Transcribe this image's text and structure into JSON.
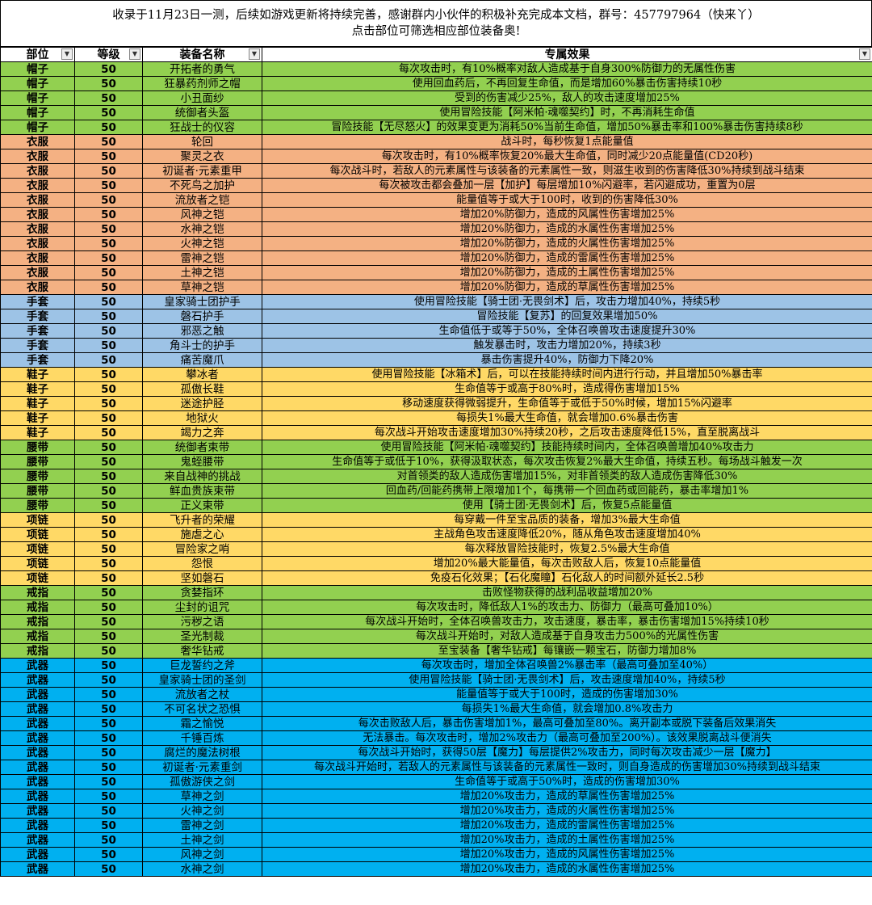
{
  "header": {
    "line1": "收录于11月23日一测，后续如游戏更新将持续完善，感谢群内小伙伴的积极补充完成本文档，群号：457797964（快来丫）",
    "line2": "点击部位可筛选相应部位装备奥!"
  },
  "columns": [
    "部位",
    "等级",
    "装备名称",
    "专属效果"
  ],
  "colors": {
    "帽子": "#92d050",
    "衣服": "#f4b183",
    "手套": "#9dc3e6",
    "鞋子": "#ffd966",
    "腰带": "#92d050",
    "项链": "#ffd966",
    "戒指": "#92d050",
    "武器": "#00b0f0"
  },
  "rows": [
    [
      "帽子",
      "50",
      "开拓者的勇气",
      "每次攻击时，有10%概率对敌人造成基于自身300%防御力的无属性伤害"
    ],
    [
      "帽子",
      "50",
      "狂暴药剂师之帽",
      "使用回血药后，不再回复生命值，而是增加60%暴击伤害持续10秒"
    ],
    [
      "帽子",
      "50",
      "小丑面纱",
      "受到的伤害减少25%，敌人的攻击速度增加25%"
    ],
    [
      "帽子",
      "50",
      "统御者头盔",
      "使用冒险技能【阿米帕·魂噬契约】时，不再消耗生命值"
    ],
    [
      "帽子",
      "50",
      "狂战士的仪容",
      "冒险技能【无尽怒火】的效果变更为消耗50%当前生命值，增加50%暴击率和100%暴击伤害持续8秒"
    ],
    [
      "衣服",
      "50",
      "轮回",
      "战斗时，每秒恢复1点能量值"
    ],
    [
      "衣服",
      "50",
      "聚灵之衣",
      "每次攻击时，有10%概率恢复20%最大生命值，同时减少20点能量值(CD20秒)"
    ],
    [
      "衣服",
      "50",
      "初诞者·元素重甲",
      "每次战斗时，若敌人的元素属性与该装备的元素属性一致，则滋生收到的伤害降低30%持续到战斗结束"
    ],
    [
      "衣服",
      "50",
      "不死鸟之加护",
      "每次被攻击都会叠加一层【加护】每层增加10%闪避率，若闪避成功，重置为0层"
    ],
    [
      "衣服",
      "50",
      "流放者之铠",
      "能量值等于或大于100时，收到的伤害降低30%"
    ],
    [
      "衣服",
      "50",
      "风神之铠",
      "增加20%防御力，造成的风属性伤害增加25%"
    ],
    [
      "衣服",
      "50",
      "水神之铠",
      "增加20%防御力，造成的水属性伤害增加25%"
    ],
    [
      "衣服",
      "50",
      "火神之铠",
      "增加20%防御力，造成的火属性伤害增加25%"
    ],
    [
      "衣服",
      "50",
      "雷神之铠",
      "增加20%防御力，造成的雷属性伤害增加25%"
    ],
    [
      "衣服",
      "50",
      "土神之铠",
      "增加20%防御力，造成的土属性伤害增加25%"
    ],
    [
      "衣服",
      "50",
      "草神之铠",
      "增加20%防御力，造成的草属性伤害增加25%"
    ],
    [
      "手套",
      "50",
      "皇家骑士团护手",
      "使用冒险技能【骑士团·无畏剑术】后，攻击力增加40%，持续5秒"
    ],
    [
      "手套",
      "50",
      "磐石护手",
      "冒险技能【复苏】的回复效果增加50%"
    ],
    [
      "手套",
      "50",
      "邪恶之触",
      "生命值低于或等于50%，全体召唤兽攻击速度提升30%"
    ],
    [
      "手套",
      "50",
      "角斗士的护手",
      "触发暴击时，攻击力增加20%，持续3秒"
    ],
    [
      "手套",
      "50",
      "痛苦魔爪",
      "暴击伤害提升40%，防御力下降20%"
    ],
    [
      "鞋子",
      "50",
      "攀冰者",
      "使用冒险技能【冰箱术】后，可以在技能持续时间内进行行动，并且增加50%暴击率"
    ],
    [
      "鞋子",
      "50",
      "孤傲长鞋",
      "生命值等于或高于80%时，造成得伤害增加15%"
    ],
    [
      "鞋子",
      "50",
      "迷途护胫",
      "移动速度获得微弱提升，生命值等于或低于50%时候，增加15%闪避率"
    ],
    [
      "鞋子",
      "50",
      "地狱火",
      "每损失1%最大生命值，就会增加0.6%暴击伤害"
    ],
    [
      "鞋子",
      "50",
      "竭力之奔",
      "每次战斗开始攻击速度增加30%持续20秒，之后攻击速度降低15%，直至脱离战斗"
    ],
    [
      "腰带",
      "50",
      "统御者束带",
      "使用冒险技能【阿米帕·魂噬契约】技能持续时间内，全体召唤兽增加40%攻击力"
    ],
    [
      "腰带",
      "50",
      "鬼蛭腰带",
      "生命值等于或低于10%，获得汲取状态，每次攻击恢复2%最大生命值，持续五秒。每场战斗触发一次"
    ],
    [
      "腰带",
      "50",
      "来自战神的挑战",
      "对首领类的敌人造成伤害增加15%，对非首领类的敌人造成伤害降低30%"
    ],
    [
      "腰带",
      "50",
      "鲜血贵族束带",
      "回血药/回能药携带上限增加1个，每携带一个回血药或回能药，暴击率增加1%"
    ],
    [
      "腰带",
      "50",
      "正义束带",
      "使用【骑士团·无畏剑术】后，恢复5点能量值"
    ],
    [
      "项链",
      "50",
      "飞升者的荣耀",
      "每穿戴一件至宝品质的装备，增加3%最大生命值"
    ],
    [
      "项链",
      "50",
      "施虐之心",
      "主战角色攻击速度降低20%，随从角色攻击速度增加40%"
    ],
    [
      "项链",
      "50",
      "冒险家之哨",
      "每次释放冒险技能时，恢复2.5%最大生命值"
    ],
    [
      "项链",
      "50",
      "怨恨",
      "增加20%最大能量值，每次击败敌人后，恢复10点能量值"
    ],
    [
      "项链",
      "50",
      "坚如磐石",
      "免疫石化效果；【石化魔瞳】石化敌人的时间额外延长2.5秒"
    ],
    [
      "戒指",
      "50",
      "贪婪指环",
      "击败怪物获得的战利品收益增加20%"
    ],
    [
      "戒指",
      "50",
      "尘封的诅咒",
      "每次攻击时，降低敌人1%的攻击力、防御力（最高可叠加10%）"
    ],
    [
      "戒指",
      "50",
      "污秽之语",
      "每次战斗开始时，全体召唤兽攻击力，攻击速度，暴击率，暴击伤害增加15%持续10秒"
    ],
    [
      "戒指",
      "50",
      "圣光制裁",
      "每次战斗开始时，对敌人造成基于自身攻击力500%的光属性伤害"
    ],
    [
      "戒指",
      "50",
      "奢华钻戒",
      "至宝装备【奢华钻戒】每镶嵌一颗宝石，防御力增加8%"
    ],
    [
      "武器",
      "50",
      "巨龙誓约之斧",
      "每次攻击时，增加全体召唤兽2%暴击率（最高可叠加至40%）"
    ],
    [
      "武器",
      "50",
      "皇家骑士团的圣剑",
      "使用冒险技能【骑士团·无畏剑术】后，攻击速度增加40%，持续5秒"
    ],
    [
      "武器",
      "50",
      "流放者之杖",
      "能量值等于或大于100时，造成的伤害增加30%"
    ],
    [
      "武器",
      "50",
      "不可名状之恐惧",
      "每损失1%最大生命值，就会增加0.8%攻击力"
    ],
    [
      "武器",
      "50",
      "霜之愉悦",
      "每次击败敌人后，暴击伤害增加1%，最高可叠加至80%。离开副本或脱下装备后效果消失"
    ],
    [
      "武器",
      "50",
      "千锤百炼",
      "无法暴击。每次攻击时，增加2%攻击力（最高可叠加至200%）。该效果脱离战斗便消失"
    ],
    [
      "武器",
      "50",
      "腐烂的魔法树根",
      "每次战斗开始时，获得50层【魔力】每层提供2%攻击力，同时每次攻击减少一层【魔力】"
    ],
    [
      "武器",
      "50",
      "初诞者·元素重剑",
      "每次战斗开始时，若敌人的元素属性与该装备的元素属性一致时，则自身造成的伤害增加30%持续到战斗结束"
    ],
    [
      "武器",
      "50",
      "孤傲游侠之剑",
      "生命值等于或高于50%时，造成的伤害增加30%"
    ],
    [
      "武器",
      "50",
      "草神之剑",
      "增加20%攻击力，造成的草属性伤害增加25%"
    ],
    [
      "武器",
      "50",
      "火神之剑",
      "增加20%攻击力，造成的火属性伤害增加25%"
    ],
    [
      "武器",
      "50",
      "雷神之剑",
      "增加20%攻击力，造成的雷属性伤害增加25%"
    ],
    [
      "武器",
      "50",
      "土神之剑",
      "增加20%攻击力，造成的土属性伤害增加25%"
    ],
    [
      "武器",
      "50",
      "风神之剑",
      "增加20%攻击力，造成的风属性伤害增加25%"
    ],
    [
      "武器",
      "50",
      "水神之剑",
      "增加20%攻击力，造成的水属性伤害增加25%"
    ]
  ]
}
